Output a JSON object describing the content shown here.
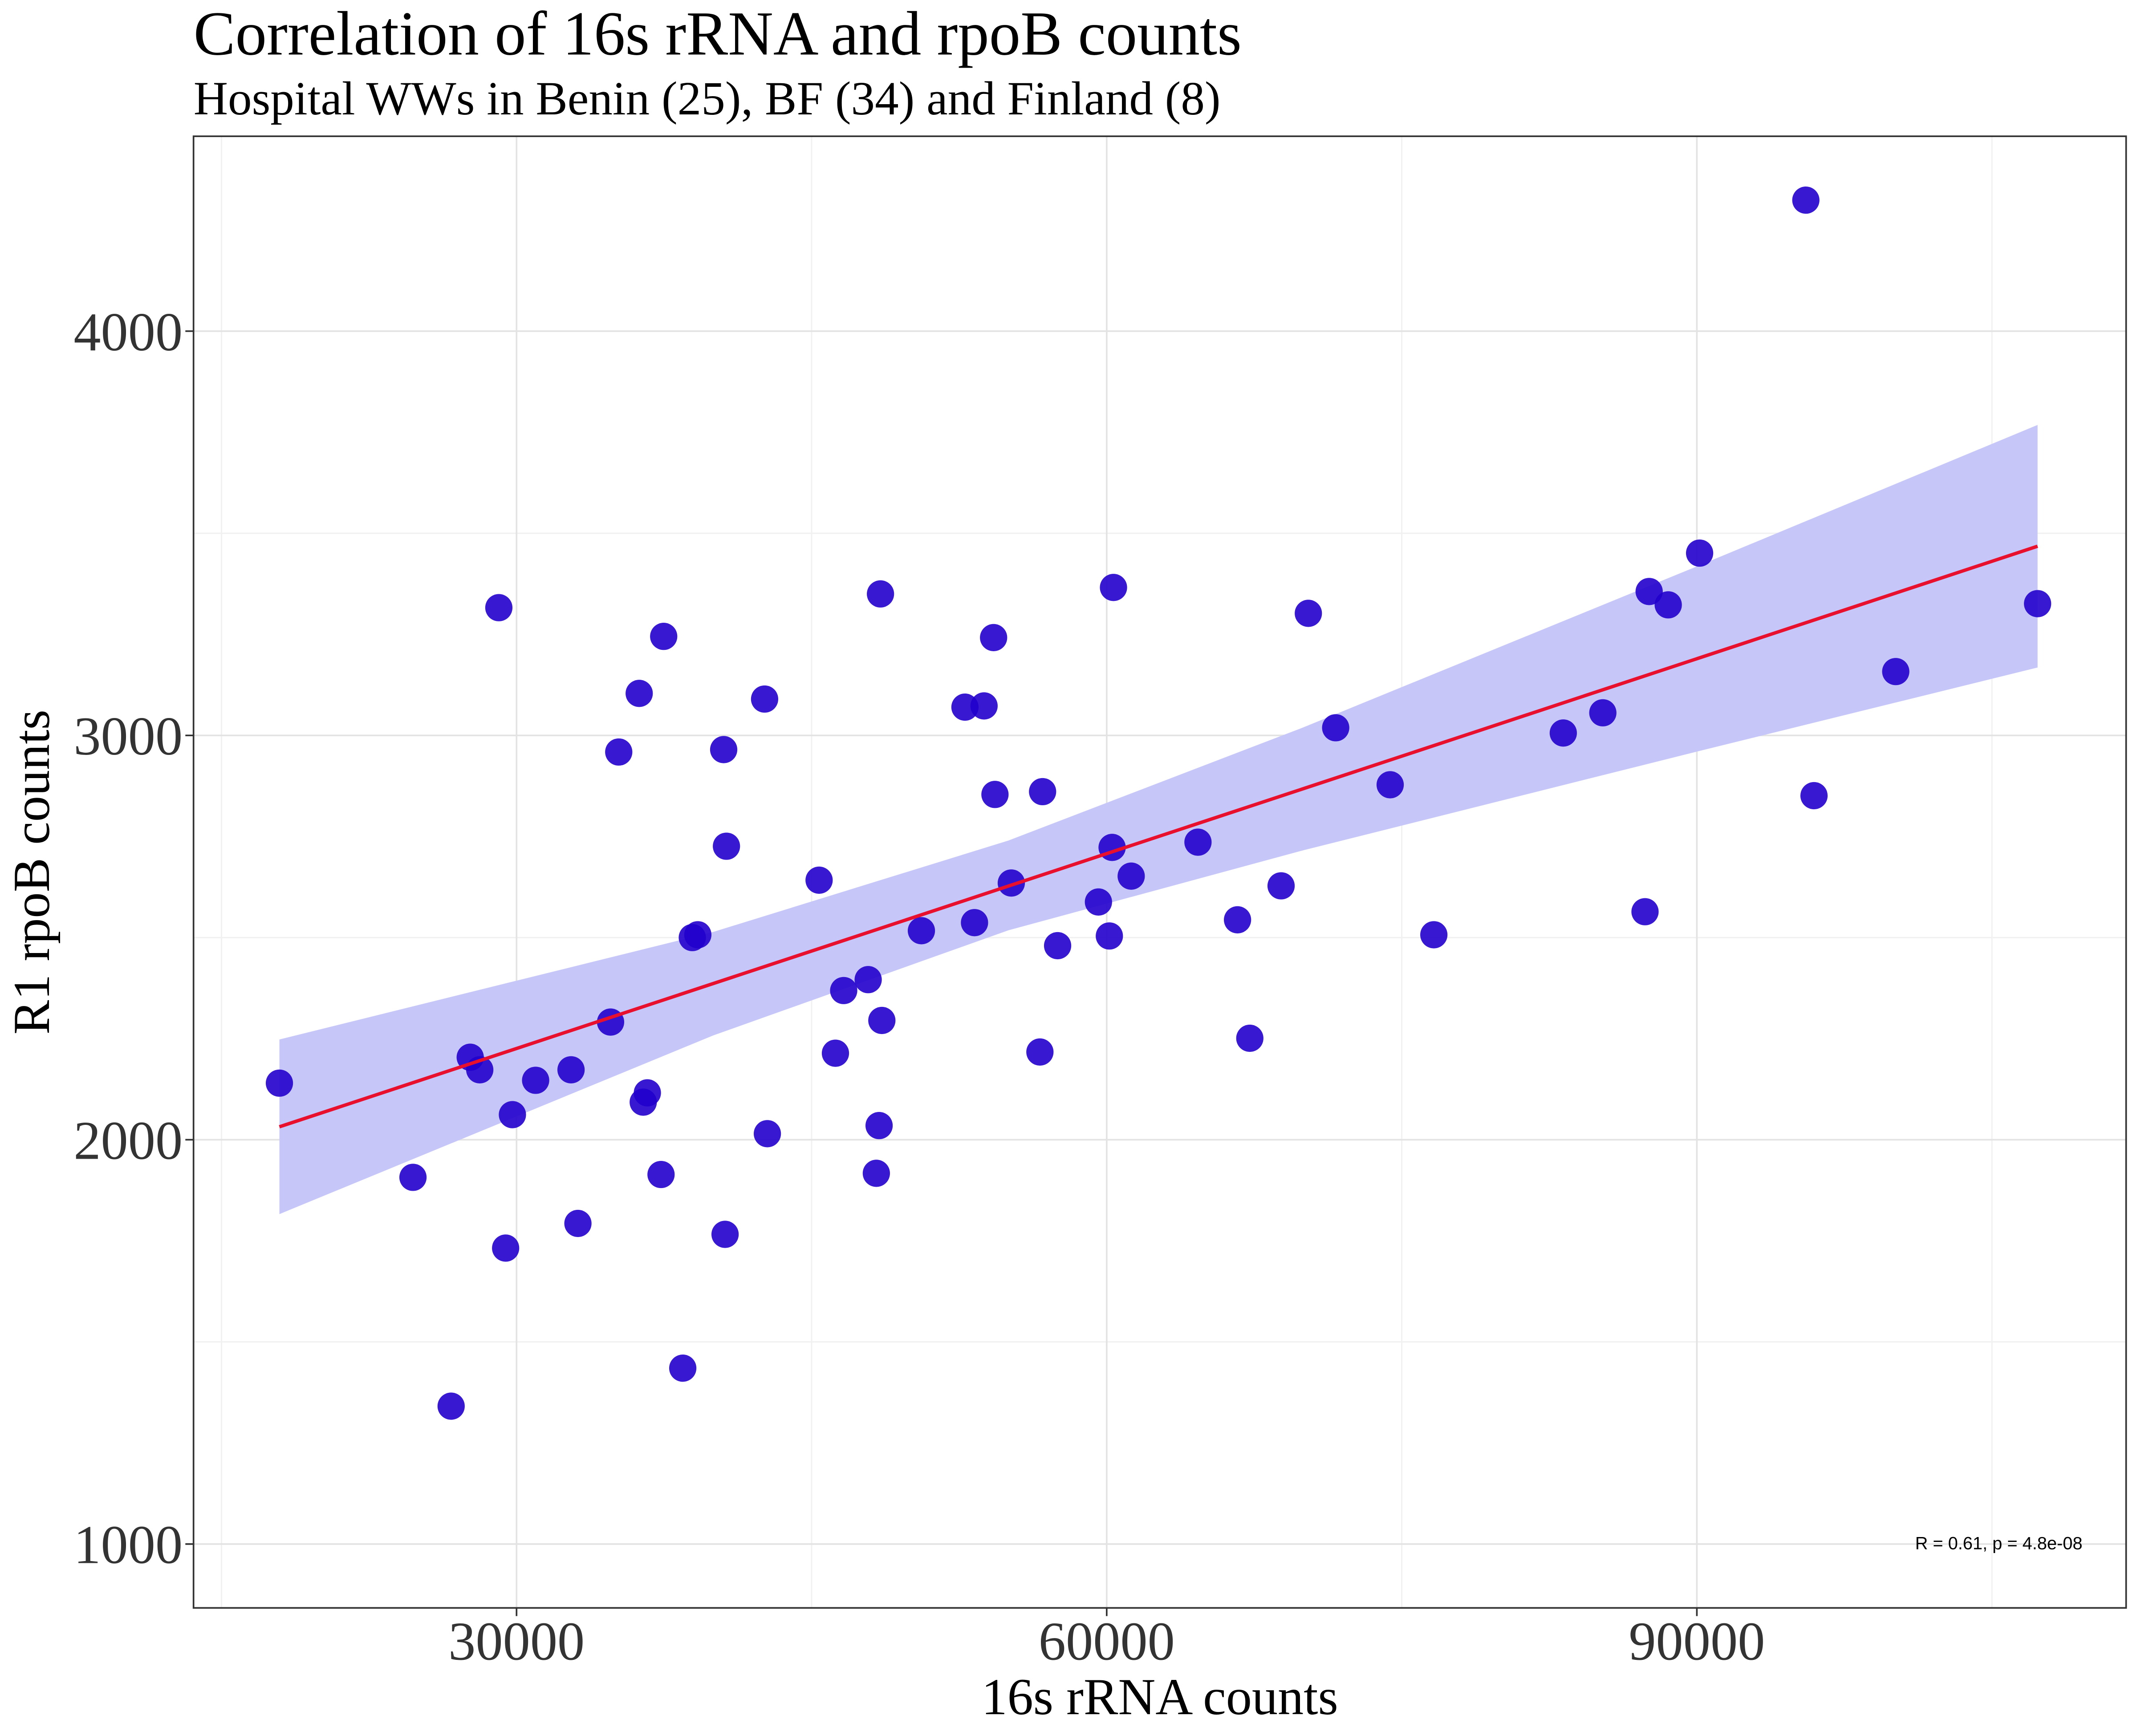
{
  "chart_data": {
    "type": "scatter",
    "title": "Correlation of 16s rRNA and rpoB counts",
    "subtitle": "Hospital WWs in Benin (25), BF (34) and Finland (8)",
    "x_label": "16s rRNA counts",
    "y_label": "R1 rpoB counts",
    "annotation": "R = 0.61, p = 4.8e-08",
    "color": "#2200cc",
    "x": [
      17945,
      24735,
      26675,
      27645,
      28130,
      29100,
      29445,
      29790,
      30970,
      32770,
      33120,
      34780,
      35195,
      36235,
      36440,
      36650,
      37345,
      37480,
      38450,
      38935,
      39215,
      40530,
      40600,
      40670,
      42610,
      42750,
      45380,
      46210,
      46630,
      47875,
      48290,
      48430,
      48500,
      48570,
      50580,
      52795,
      53280,
      53765,
      54250,
      54320,
      55150,
      56605,
      56740,
      57505,
      59580,
      60135,
      60275,
      60345,
      61245,
      64640,
      66650,
      67275,
      68865,
      70250,
      71640,
      74410,
      76630,
      83210,
      85220,
      87365,
      87575,
      88545,
      90140,
      95540,
      95955,
      100110,
      107320
    ],
    "values": [
      2140,
      1907,
      1341,
      2204,
      2173,
      3316,
      1732,
      2062,
      2147,
      2173,
      1793,
      2291,
      2959,
      3104,
      2093,
      2116,
      1914,
      3245,
      1435,
      2500,
      2507,
      2965,
      1766,
      2726,
      3090,
      2015,
      2642,
      2214,
      2369,
      2396,
      1917,
      2035,
      3350,
      2295,
      2517,
      3070,
      2537,
      3073,
      3242,
      2854,
      2635,
      2217,
      2861,
      2480,
      2588,
      2504,
      2723,
      3366,
      2652,
      2736,
      2544,
      2251,
      2628,
      3302,
      3019,
      2878,
      2507,
      3006,
      3056,
      2564,
      3356,
      3323,
      3451,
      4324,
      2851,
      3158,
      3326
    ],
    "fit_line": {
      "x": [
        17945,
        107320
      ],
      "values": [
        2032,
        3468
      ],
      "color": "#e8102c"
    },
    "confidence_band": {
      "x": [
        17945,
        40000,
        55000,
        70000,
        90000,
        107320
      ],
      "lower": [
        1816,
        2258,
        2518,
        2716,
        2960,
        3168
      ],
      "upper": [
        2248,
        2514,
        2740,
        3020,
        3418,
        3768
      ],
      "color": "#c6c6f8"
    },
    "xlim": [
      13580,
      111820
    ],
    "ylim": [
      842,
      4482
    ],
    "xticks": [
      30000,
      60000,
      90000
    ],
    "yticks": [
      1000,
      2000,
      3000,
      4000
    ],
    "x_minor_ticks": [
      15000,
      45000,
      75000,
      105000
    ],
    "y_minor_ticks": [
      1500,
      2500,
      3500
    ],
    "grid": true
  }
}
